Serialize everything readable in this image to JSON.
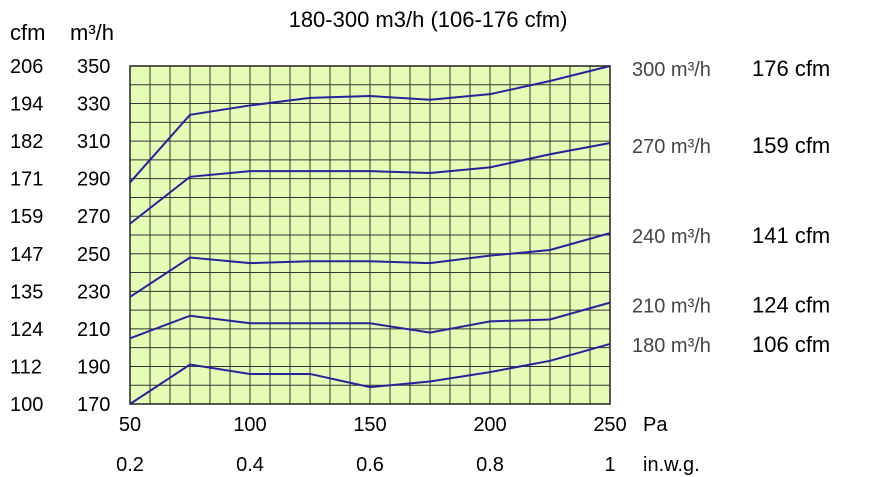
{
  "chart_data": {
    "type": "line",
    "title": "180-300 m3/h (106-176 cfm)",
    "y_units": [
      "cfm",
      "m³/h"
    ],
    "x_units": [
      "Pa",
      "in.w.g."
    ],
    "x_pa_ticks": [
      "50",
      "100",
      "150",
      "200",
      "250"
    ],
    "x_inwg_ticks": [
      "0.2",
      "0.4",
      "0.6",
      "0.8",
      "1"
    ],
    "y_m3h_ticks": [
      "350",
      "330",
      "310",
      "290",
      "270",
      "250",
      "230",
      "210",
      "190",
      "170"
    ],
    "y_cfm_ticks": [
      "206",
      "194",
      "182",
      "171",
      "159",
      "147",
      "135",
      "124",
      "112",
      "100"
    ],
    "xlim": [
      50,
      250
    ],
    "ylim": [
      170,
      350
    ],
    "grid": true,
    "x": [
      50,
      75,
      100,
      125,
      150,
      175,
      200,
      225,
      250
    ],
    "series": [
      {
        "m3h_label": "300 m³/h",
        "cfm_label": "176 cfm",
        "values": [
          288,
          324,
          329,
          333,
          334,
          332,
          335,
          342,
          350
        ]
      },
      {
        "m3h_label": "270 m³/h",
        "cfm_label": "159 cfm",
        "values": [
          266,
          291,
          294,
          294,
          294,
          293,
          296,
          303,
          309
        ]
      },
      {
        "m3h_label": "240 m³/h",
        "cfm_label": "141 cfm",
        "values": [
          227,
          248,
          245,
          246,
          246,
          245,
          249,
          252,
          261
        ]
      },
      {
        "m3h_label": "210 m³/h",
        "cfm_label": "124 cfm",
        "values": [
          205,
          217,
          213,
          213,
          213,
          208,
          214,
          215,
          224
        ]
      },
      {
        "m3h_label": "180 m³/h",
        "cfm_label": "106 cfm",
        "values": [
          170,
          191,
          186,
          186,
          179,
          182,
          187,
          193,
          202
        ]
      }
    ]
  }
}
